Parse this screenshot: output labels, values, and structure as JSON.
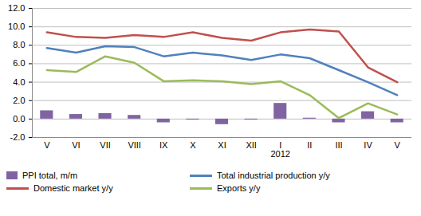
{
  "chart_data": {
    "type": "line",
    "categories": [
      "V",
      "VI",
      "VII",
      "VIII",
      "IX",
      "X",
      "XI",
      "XII",
      "I\n2012",
      "II",
      "III",
      "IV",
      "V"
    ],
    "series": [
      {
        "name": "PPI total, m/m",
        "type": "bar",
        "color": "#8064a2",
        "values": [
          0.9,
          0.5,
          0.6,
          0.4,
          -0.4,
          -0.1,
          -0.6,
          -0.1,
          1.7,
          0.1,
          -0.4,
          0.8,
          -0.4
        ]
      },
      {
        "name": "Total industrial production y/y",
        "type": "line",
        "color": "#4f81bd",
        "values": [
          7.7,
          7.2,
          7.9,
          7.8,
          6.8,
          7.2,
          6.9,
          6.4,
          7.0,
          6.6,
          5.3,
          4.0,
          2.6
        ]
      },
      {
        "name": "Domestic market y/y",
        "type": "line",
        "color": "#c0504d",
        "values": [
          9.4,
          8.9,
          8.8,
          9.1,
          8.9,
          9.4,
          8.8,
          8.5,
          9.4,
          9.7,
          9.5,
          5.6,
          4.0
        ]
      },
      {
        "name": "Exports y/y",
        "type": "line",
        "color": "#9bbb59",
        "values": [
          5.3,
          5.1,
          6.8,
          6.1,
          4.1,
          4.2,
          4.1,
          3.8,
          4.1,
          2.6,
          0.1,
          1.7,
          0.5
        ]
      }
    ],
    "ylim": [
      -2,
      12
    ],
    "yticks": [
      {
        "value": -2,
        "label": "-2.0"
      },
      {
        "value": 0,
        "label": "0.0"
      },
      {
        "value": 2,
        "label": "2.0"
      },
      {
        "value": 4,
        "label": "4.0"
      },
      {
        "value": 6,
        "label": "6.0"
      },
      {
        "value": 8,
        "label": "8.0"
      },
      {
        "value": 10,
        "label": "10.0"
      },
      {
        "value": 12,
        "label": "12.0"
      }
    ],
    "grid": true,
    "legend": "bottom"
  }
}
